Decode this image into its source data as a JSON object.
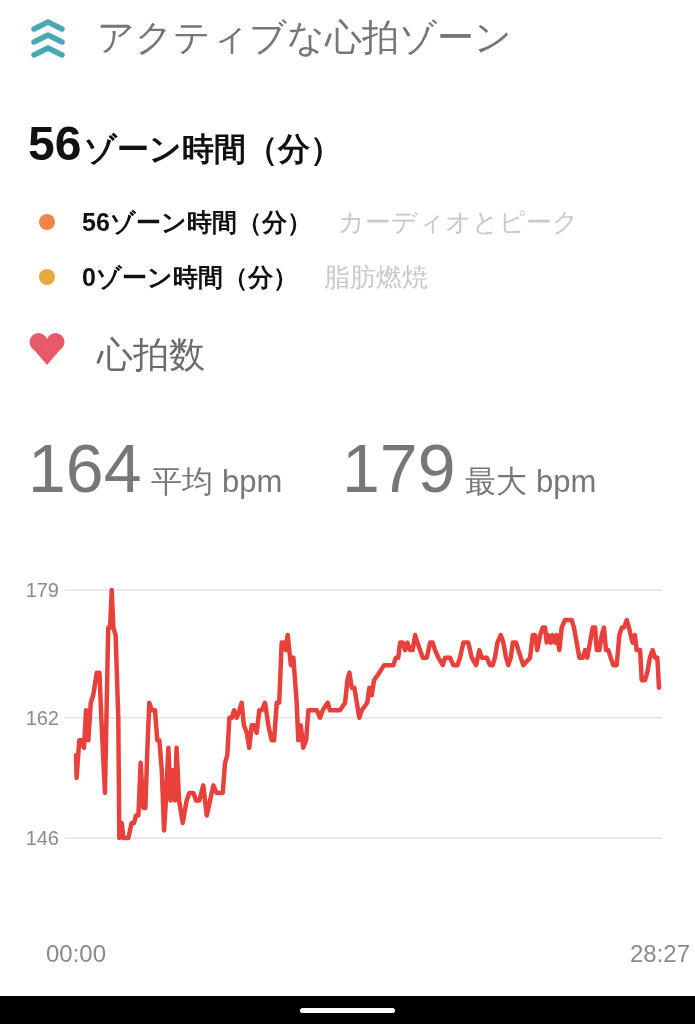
{
  "chart_data": [
    {
      "type": "other",
      "title": "アクティブな心拍ゾーン",
      "annotations": [
        "56",
        "ゾーン時間（分）",
        "56ゾーン時間（分）",
        "カーディオとピーク",
        "0ゾーン時間（分）",
        "脂肪燃焼"
      ]
    },
    {
      "type": "line",
      "title": "心拍数",
      "annotations": [
        "164",
        "平均 bpm",
        "179",
        "最大 bpm"
      ],
      "x": [
        0,
        0.03,
        0.16,
        0.28,
        0.39,
        0.49,
        0.6,
        0.72,
        0.84,
        1.01,
        1.14,
        1.25,
        1.41,
        1.57,
        1.66,
        1.74,
        1.82,
        1.93,
        2.06,
        2.11,
        2.23,
        2.31,
        2.55,
        2.71,
        2.83,
        2.92,
        3.04,
        3.15,
        3.28,
        3.38,
        3.48,
        3.57,
        3.69,
        3.85,
        3.96,
        4.06,
        4.18,
        4.29,
        4.38,
        4.5,
        4.61,
        4.71,
        4.82,
        4.9,
        5.02,
        5.2,
        5.39,
        5.52,
        5.72,
        5.85,
        6.01,
        6.2,
        6.37,
        6.53,
        6.69,
        6.85,
        7.15,
        7.26,
        7.37,
        7.47,
        7.59,
        7.7,
        7.83,
        7.96,
        8.07,
        8.18,
        8.32,
        8.44,
        8.56,
        8.67,
        8.8,
        8.93,
        9.05,
        9.21,
        9.37,
        9.53,
        9.65,
        9.78,
        9.9,
        10.02,
        10.13,
        10.23,
        10.31,
        10.39,
        10.47,
        10.59,
        10.67,
        10.75,
        10.83,
        10.95,
        11.07,
        11.21,
        11.32,
        11.43,
        11.56,
        11.73,
        11.89,
        12.02,
        12.26,
        12.37,
        12.86,
        13.11,
        13.22,
        13.32,
        13.43,
        13.56,
        13.68,
        13.8,
        13.92,
        14.19,
        14.29,
        14.41,
        14.52,
        14.78,
        15.01,
        15.1,
        15.22,
        15.46,
        15.58,
        15.7,
        15.79,
        15.92,
        16.03,
        16.14,
        16.27,
        16.4,
        16.52,
        16.63,
        16.76,
        16.89,
        17.09,
        17.25,
        17.38,
        17.49,
        17.65,
        17.87,
        17.98,
        18.22,
        18.38,
        18.58,
        18.71,
        18.87,
        19.11,
        19.28,
        19.49,
        19.65,
        19.77,
        20.01,
        20.17,
        20.3,
        20.41,
        20.53,
        20.69,
        20.82,
        20.95,
        21.06,
        21.18,
        21.28,
        21.44,
        21.55,
        21.67,
        21.79,
        22.12,
        22.25,
        22.36,
        22.47,
        22.61,
        22.74,
        22.85,
        22.93,
        23.01,
        23.13,
        23.22,
        23.34,
        23.42,
        23.55,
        23.66,
        23.82,
        23.94,
        24.15,
        24.26,
        24.39,
        24.52,
        24.69,
        24.8,
        24.91,
        25.04,
        25.17,
        25.29,
        25.37,
        25.5,
        25.61,
        25.72,
        25.82,
        25.93,
        26.05,
        26.18,
        26.34,
        26.47,
        26.59,
        26.7,
        26.83,
        26.94,
        27.02,
        27.12,
        27.23,
        27.31,
        27.48,
        27.56,
        27.72,
        27.83,
        27.96,
        28.09,
        28.21,
        28.32,
        28.4
      ],
      "xlim": [
        0,
        28.45
      ],
      "xticks": [
        {
          "value": 0,
          "label": "00:00"
        },
        {
          "value": 28.45,
          "label": "28:27"
        }
      ],
      "ylim": [
        146,
        179
      ],
      "yticks": [
        146,
        162,
        179
      ],
      "grid": "y",
      "series": [
        {
          "color": "#e8413c",
          "values": [
            157,
            154,
            159,
            159,
            158,
            163,
            159,
            164,
            165,
            168,
            168,
            161,
            152,
            174,
            174,
            179,
            174,
            173,
            162,
            146,
            148,
            146,
            146,
            148,
            148,
            149,
            149,
            156,
            150,
            150,
            158,
            164,
            163,
            163,
            159,
            159,
            155,
            147,
            151,
            158,
            151,
            155,
            151,
            158,
            151,
            148,
            151,
            152,
            152,
            151,
            151,
            153,
            149,
            151,
            153,
            152,
            152,
            156,
            157,
            162,
            162,
            163,
            162,
            163,
            164,
            161,
            160,
            158,
            161,
            161,
            160,
            163,
            163,
            164,
            161,
            159,
            159,
            164,
            164,
            172,
            172,
            171,
            173,
            171,
            169,
            170,
            167,
            164,
            159,
            161,
            158,
            159,
            163,
            163,
            163,
            163,
            162,
            163,
            164,
            163,
            163,
            164,
            167,
            168,
            166,
            166,
            164,
            162,
            163,
            164,
            166,
            165,
            167,
            168,
            169,
            169,
            169,
            169,
            170,
            170,
            172,
            172,
            171,
            172,
            171,
            171,
            173,
            172,
            171,
            170,
            170,
            172,
            172,
            171,
            170,
            169,
            170,
            170,
            169,
            169,
            170,
            172,
            172,
            170,
            169,
            171,
            170,
            170,
            169,
            169,
            170,
            172,
            173,
            172,
            170,
            169,
            170,
            172,
            172,
            171,
            170,
            169,
            170,
            173,
            173,
            171,
            173,
            174,
            174,
            172,
            173,
            172,
            173,
            172,
            173,
            171,
            174,
            175,
            175,
            175,
            174,
            172,
            170,
            170,
            171,
            170,
            172,
            174,
            174,
            171,
            171,
            173,
            174,
            171,
            171,
            170,
            169,
            169,
            173,
            174,
            174,
            175,
            174,
            173,
            172,
            173,
            171,
            171,
            167,
            167,
            168,
            170,
            171,
            170,
            170,
            166
          ]
        }
      ]
    }
  ]
}
